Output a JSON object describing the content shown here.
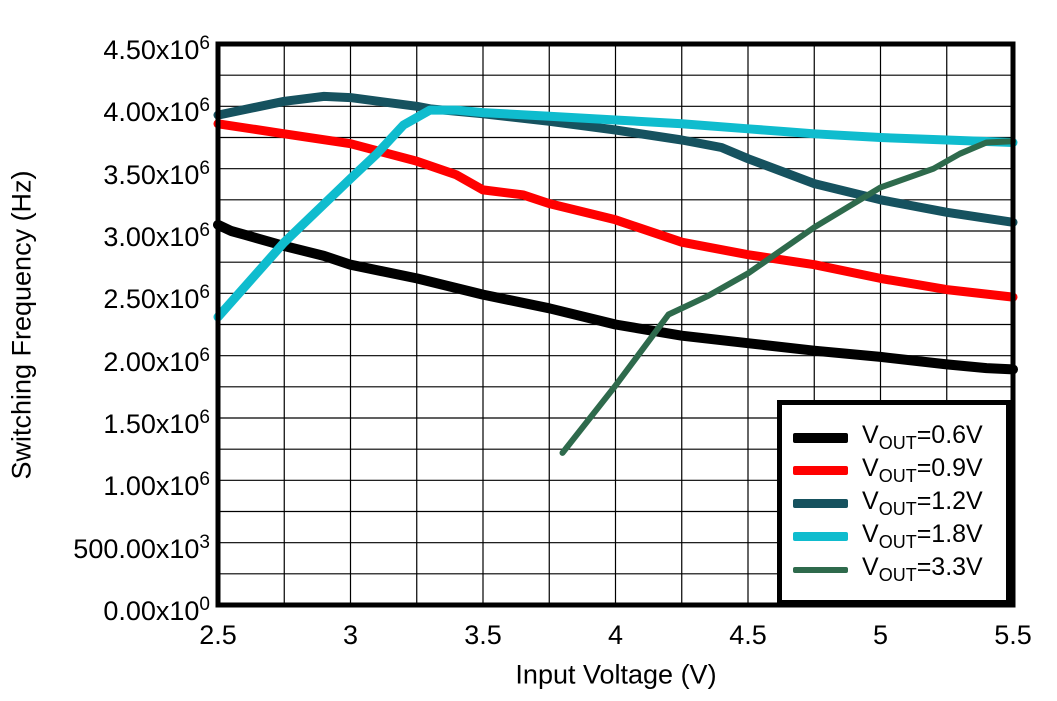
{
  "figure": {
    "background": "#FFFFFF",
    "axis_color": "#000000",
    "grid_color": "#000000",
    "text_color": "#000000"
  },
  "chart_data": {
    "type": "line",
    "title": "",
    "xlabel": "Input Voltage (V)",
    "ylabel": "Switching Frequency (Hz)",
    "xlim": [
      2.5,
      5.5
    ],
    "ylim_hz": [
      0,
      4500000
    ],
    "grid": {
      "on": true,
      "x_step_v": 0.25,
      "y_step_hz": 250000
    },
    "x_ticks": [
      {
        "label": "2.5",
        "value": 2.5
      },
      {
        "label": "3",
        "value": 3.0
      },
      {
        "label": "3.5",
        "value": 3.5
      },
      {
        "label": "4",
        "value": 4.0
      },
      {
        "label": "4.5",
        "value": 4.5
      },
      {
        "label": "5",
        "value": 5.0
      },
      {
        "label": "5.5",
        "value": 5.5
      }
    ],
    "y_ticks": [
      {
        "mantissa": "0.00x10",
        "exponent": "0",
        "value_hz": 0
      },
      {
        "mantissa": "500.00x10",
        "exponent": "3",
        "value_hz": 500000
      },
      {
        "mantissa": "1.00x10",
        "exponent": "6",
        "value_hz": 1000000
      },
      {
        "mantissa": "1.50x10",
        "exponent": "6",
        "value_hz": 1500000
      },
      {
        "mantissa": "2.00x10",
        "exponent": "6",
        "value_hz": 2000000
      },
      {
        "mantissa": "2.50x10",
        "exponent": "6",
        "value_hz": 2500000
      },
      {
        "mantissa": "3.00x10",
        "exponent": "6",
        "value_hz": 3000000
      },
      {
        "mantissa": "3.50x10",
        "exponent": "6",
        "value_hz": 3500000
      },
      {
        "mantissa": "4.00x10",
        "exponent": "6",
        "value_hz": 4000000
      },
      {
        "mantissa": "4.50x10",
        "exponent": "6",
        "value_hz": 4500000
      }
    ],
    "legend": {
      "position": "bottom-right"
    },
    "series": [
      {
        "id": "vout-0v6",
        "name": "VOUT=0.6V",
        "label_parts": {
          "base": "V",
          "sub": "OUT",
          "rest": "=0.6V"
        },
        "color": "#000000",
        "stroke_width": 10,
        "points": [
          [
            2.5,
            3050000
          ],
          [
            2.55,
            3000000
          ],
          [
            2.6,
            2970000
          ],
          [
            2.75,
            2880000
          ],
          [
            2.9,
            2800000
          ],
          [
            3.0,
            2730000
          ],
          [
            3.25,
            2620000
          ],
          [
            3.5,
            2490000
          ],
          [
            3.75,
            2380000
          ],
          [
            4.0,
            2250000
          ],
          [
            4.25,
            2160000
          ],
          [
            4.5,
            2100000
          ],
          [
            4.75,
            2040000
          ],
          [
            5.0,
            1990000
          ],
          [
            5.25,
            1930000
          ],
          [
            5.4,
            1900000
          ],
          [
            5.5,
            1890000
          ]
        ]
      },
      {
        "id": "vout-0v9",
        "name": "VOUT=0.9V",
        "label_parts": {
          "base": "V",
          "sub": "OUT",
          "rest": "=0.9V"
        },
        "color": "#FF0000",
        "stroke_width": 9,
        "points": [
          [
            2.5,
            3860000
          ],
          [
            2.75,
            3780000
          ],
          [
            3.0,
            3700000
          ],
          [
            3.25,
            3560000
          ],
          [
            3.4,
            3450000
          ],
          [
            3.5,
            3330000
          ],
          [
            3.65,
            3290000
          ],
          [
            3.75,
            3220000
          ],
          [
            4.0,
            3090000
          ],
          [
            4.25,
            2910000
          ],
          [
            4.5,
            2810000
          ],
          [
            4.75,
            2730000
          ],
          [
            5.0,
            2620000
          ],
          [
            5.25,
            2530000
          ],
          [
            5.5,
            2470000
          ]
        ]
      },
      {
        "id": "vout-1v2",
        "name": "VOUT=1.2V",
        "label_parts": {
          "base": "V",
          "sub": "OUT",
          "rest": "=1.2V"
        },
        "color": "#16525F",
        "stroke_width": 9,
        "points": [
          [
            2.5,
            3930000
          ],
          [
            2.75,
            4040000
          ],
          [
            2.9,
            4080000
          ],
          [
            3.0,
            4070000
          ],
          [
            3.25,
            4000000
          ],
          [
            3.3,
            3980000
          ],
          [
            3.5,
            3940000
          ],
          [
            3.75,
            3880000
          ],
          [
            4.0,
            3810000
          ],
          [
            4.25,
            3730000
          ],
          [
            4.4,
            3670000
          ],
          [
            4.5,
            3580000
          ],
          [
            4.75,
            3380000
          ],
          [
            5.0,
            3250000
          ],
          [
            5.25,
            3150000
          ],
          [
            5.5,
            3070000
          ]
        ]
      },
      {
        "id": "vout-1v8",
        "name": "VOUT=1.8V",
        "label_parts": {
          "base": "V",
          "sub": "OUT",
          "rest": "=1.8V"
        },
        "color": "#0FBCCE",
        "stroke_width": 9,
        "points": [
          [
            2.5,
            2310000
          ],
          [
            2.75,
            2910000
          ],
          [
            3.0,
            3420000
          ],
          [
            3.1,
            3620000
          ],
          [
            3.2,
            3850000
          ],
          [
            3.3,
            3970000
          ],
          [
            3.4,
            3970000
          ],
          [
            3.5,
            3950000
          ],
          [
            3.75,
            3920000
          ],
          [
            4.0,
            3890000
          ],
          [
            4.25,
            3860000
          ],
          [
            4.5,
            3820000
          ],
          [
            4.75,
            3780000
          ],
          [
            5.0,
            3750000
          ],
          [
            5.25,
            3730000
          ],
          [
            5.5,
            3710000
          ]
        ]
      },
      {
        "id": "vout-3v3",
        "name": "VOUT=3.3V",
        "label_parts": {
          "base": "V",
          "sub": "OUT",
          "rest": "=3.3V"
        },
        "color": "#2E6A4C",
        "stroke_width": 6,
        "points": [
          [
            3.8,
            1220000
          ],
          [
            4.0,
            1760000
          ],
          [
            4.2,
            2330000
          ],
          [
            4.35,
            2480000
          ],
          [
            4.5,
            2660000
          ],
          [
            4.75,
            3030000
          ],
          [
            5.0,
            3350000
          ],
          [
            5.2,
            3500000
          ],
          [
            5.3,
            3620000
          ],
          [
            5.4,
            3710000
          ],
          [
            5.5,
            3720000
          ]
        ]
      }
    ]
  }
}
